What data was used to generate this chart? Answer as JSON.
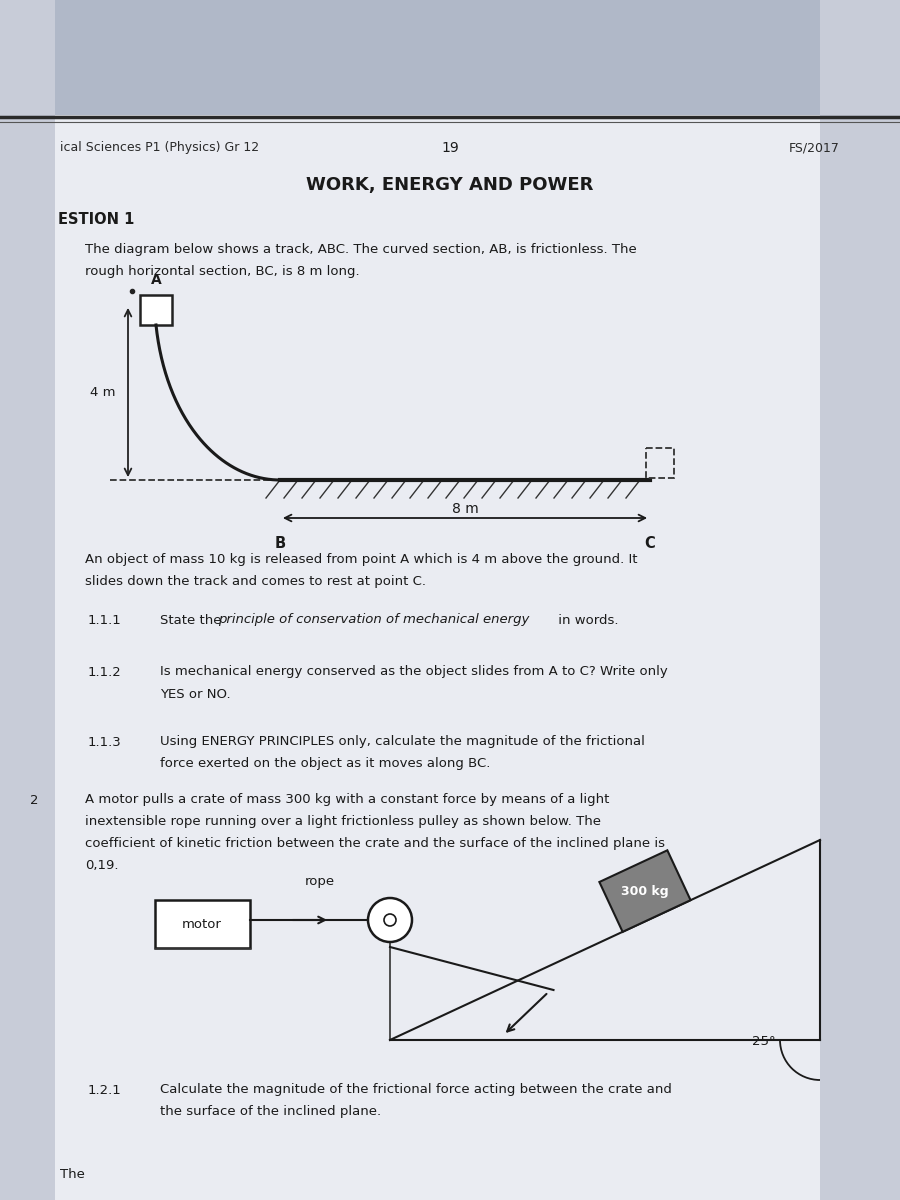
{
  "page_num": "19",
  "fs_year": "FS/2017",
  "subject": "ical Sciences P1 (Physics) Gr 12",
  "section_title": "WORK, ENERGY AND POWER",
  "question_label": "ESTION 1",
  "question_number2": "2",
  "bg_top_color": "#c8ccd8",
  "bg_side_color": "#d0d4e0",
  "paper_color": "#eaecf2",
  "text_color": "#1a1a1a",
  "q1_text1_line1": "The diagram below shows a track, ABC. The curved section, AB, is frictionless. The",
  "q1_text1_line2": "rough horizontal section, BC, is 8 m long.",
  "q1_obj_line1": "An object of mass 10 kg is released from point A which is 4 m above the ground. It",
  "q1_obj_line2": "slides down the track and comes to rest at point C.",
  "q111_label": "1.1.1",
  "q111_text": "State the principle of conservation of mechanical energy in words.",
  "q112_label": "1.1.2",
  "q112_line1": "Is mechanical energy conserved as the object slides from A to C? Write only",
  "q112_line2": "YES or NO.",
  "q113_label": "1.1.3",
  "q113_line1": "Using ENERGY PRINCIPLES only, calculate the magnitude of the frictional",
  "q113_line2": "force exerted on the object as it moves along BC.",
  "q2_line1": "A motor pulls a crate of mass 300 kg with a constant force by means of a light",
  "q2_line2": "inextensible rope running over a light frictionless pulley as shown below. The",
  "q2_line3": "coefficient of kinetic friction between the crate and the surface of the inclined plane is",
  "q2_line4": "0,19.",
  "q121_label": "1.2.1",
  "q121_line1": "Calculate the magnitude of the frictional force acting between the crate and",
  "q121_line2": "the surface of the inclined plane.",
  "bottom_text": "The"
}
